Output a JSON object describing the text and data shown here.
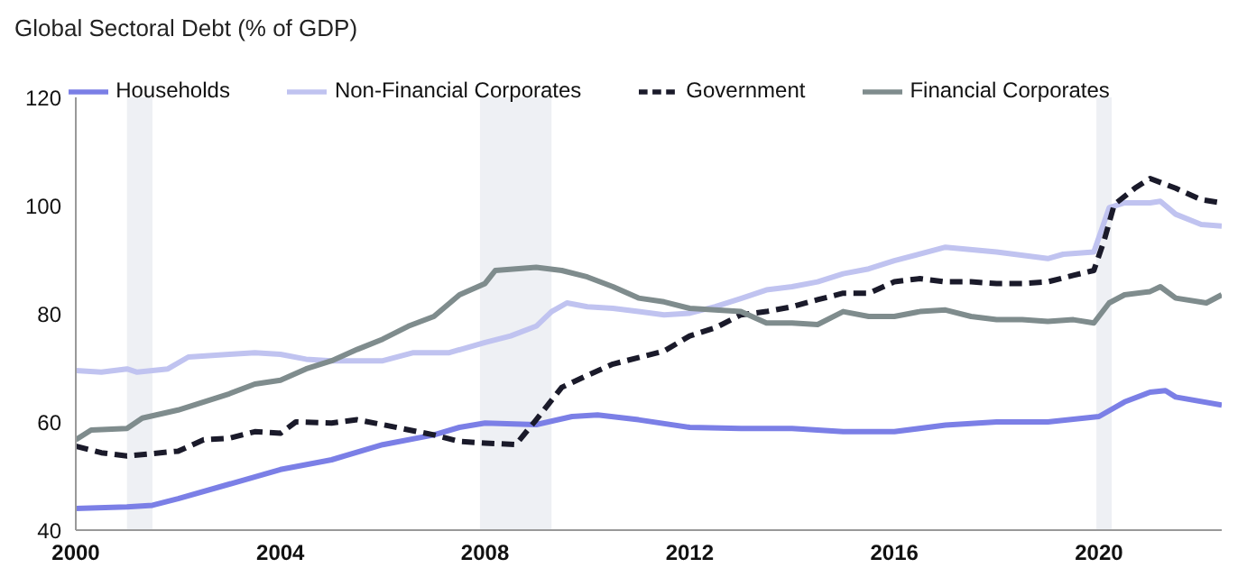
{
  "chart_data": {
    "type": "line",
    "title": "Global Sectoral Debt (% of GDP)",
    "xlim": [
      2000,
      2022.4
    ],
    "xticks": [
      2000,
      2004,
      2008,
      2012,
      2016,
      2020
    ],
    "ylim": [
      40,
      120
    ],
    "yticks": [
      40,
      60,
      80,
      100,
      120
    ],
    "grid": false,
    "legend": "top",
    "marker": "none",
    "bands": [
      {
        "axis": "x",
        "from": 2001.0,
        "to": 2001.5,
        "color": "#eef0f4"
      },
      {
        "axis": "x",
        "from": 2007.9,
        "to": 2009.3,
        "color": "#eef0f4"
      },
      {
        "axis": "x",
        "from": 2019.95,
        "to": 2020.25,
        "color": "#eef0f4"
      }
    ],
    "series": [
      {
        "name": "Households",
        "color": "#7b7fe6",
        "line_style": "solid",
        "x": [
          2000,
          2001,
          2001.5,
          2002,
          2003,
          2004,
          2005,
          2006,
          2007,
          2007.5,
          2008,
          2009,
          2009.7,
          2010.2,
          2011,
          2012,
          2013,
          2014,
          2015,
          2016,
          2017,
          2018,
          2019,
          2020,
          2020.5,
          2021,
          2021.3,
          2021.5,
          2022.4
        ],
        "values": [
          44,
          44.3,
          44.6,
          45.8,
          48.5,
          51.2,
          53,
          55.8,
          57.6,
          59,
          59.8,
          59.5,
          61,
          61.3,
          60.4,
          59,
          58.8,
          58.8,
          58.2,
          58.2,
          59.4,
          60,
          60,
          61,
          63.7,
          65.5,
          65.8,
          64.6,
          63.1
        ]
      },
      {
        "name": "Non-Financial Corporates",
        "color": "#c0c3f0",
        "line_style": "solid",
        "x": [
          2000,
          2000.5,
          2001,
          2001.2,
          2001.8,
          2002.2,
          2003,
          2003.5,
          2004,
          2004.5,
          2005,
          2006,
          2006.6,
          2007.3,
          2008,
          2008.5,
          2009,
          2009.3,
          2009.6,
          2010,
          2010.5,
          2011,
          2011.5,
          2012,
          2012.5,
          2013,
          2013.5,
          2014,
          2014.5,
          2015,
          2015.5,
          2016,
          2017,
          2018,
          2019,
          2019.3,
          2019.9,
          2020.2,
          2020.5,
          2021,
          2021.2,
          2021.5,
          2022,
          2022.4
        ],
        "values": [
          69.5,
          69.2,
          69.8,
          69.2,
          69.8,
          72,
          72.5,
          72.8,
          72.5,
          71.6,
          71.3,
          71.3,
          72.8,
          72.8,
          74.7,
          75.9,
          77.7,
          80.4,
          82,
          81.3,
          81,
          80.4,
          79.8,
          80.1,
          81.3,
          82.8,
          84.4,
          85,
          85.9,
          87.4,
          88.3,
          89.8,
          92.3,
          91.4,
          90.2,
          91,
          91.4,
          99.6,
          100.5,
          100.5,
          100.8,
          98.4,
          96.5,
          96.2
        ]
      },
      {
        "name": "Government",
        "color": "#1a1a2a",
        "line_style": "dashed",
        "x": [
          2000,
          2000.5,
          2001,
          2002,
          2002.5,
          2003,
          2003.5,
          2004,
          2004.3,
          2005,
          2005.5,
          2006,
          2007,
          2007.5,
          2008,
          2008.6,
          2009,
          2009.5,
          2010,
          2010.5,
          2011,
          2011.5,
          2012,
          2012.5,
          2013,
          2013.5,
          2014,
          2014.5,
          2015,
          2015.5,
          2016,
          2016.5,
          2017,
          2017.5,
          2018,
          2018.5,
          2019,
          2019.5,
          2019.9,
          2020.1,
          2020.3,
          2020.7,
          2021,
          2021.5,
          2022,
          2022.4
        ],
        "values": [
          55.5,
          54.3,
          53.7,
          54.6,
          56.7,
          57,
          58.2,
          57.9,
          60,
          59.8,
          60.4,
          59.5,
          57.6,
          56.4,
          56.1,
          55.8,
          60.4,
          66.4,
          68.6,
          70.7,
          71.9,
          73.1,
          75.9,
          77.4,
          79.8,
          80.4,
          81.3,
          82.6,
          83.8,
          83.8,
          85.9,
          86.5,
          85.9,
          85.9,
          85.6,
          85.6,
          85.9,
          87.1,
          88,
          93.5,
          100.2,
          103.2,
          105,
          103.2,
          101.1,
          100.5
        ]
      },
      {
        "name": "Financial Corporates",
        "color": "#7f8c8d",
        "line_style": "solid",
        "x": [
          2000,
          2000.3,
          2001,
          2001.3,
          2002,
          2003,
          2003.5,
          2004,
          2004.5,
          2005,
          2005.5,
          2006,
          2006.5,
          2007,
          2007.5,
          2008,
          2008.2,
          2009,
          2009.5,
          2010,
          2010.5,
          2011,
          2011.5,
          2012,
          2012.5,
          2013,
          2013.5,
          2014,
          2014.5,
          2015,
          2015.5,
          2016,
          2016.5,
          2017,
          2017.5,
          2018,
          2018.5,
          2019,
          2019.5,
          2019.9,
          2020.2,
          2020.5,
          2021,
          2021.2,
          2021.5,
          2022.1,
          2022.4
        ],
        "values": [
          56.7,
          58.5,
          58.8,
          60.7,
          62.2,
          65.2,
          67,
          67.7,
          69.8,
          71.3,
          73.4,
          75.3,
          77.7,
          79.5,
          83.5,
          85.6,
          88,
          88.6,
          88,
          86.8,
          85,
          82.9,
          82.2,
          81,
          80.7,
          80.4,
          78.3,
          78.3,
          78,
          80.4,
          79.5,
          79.5,
          80.4,
          80.7,
          79.5,
          78.9,
          78.9,
          78.6,
          78.9,
          78.3,
          82,
          83.5,
          84.1,
          85,
          82.9,
          82,
          83.5
        ]
      }
    ]
  }
}
